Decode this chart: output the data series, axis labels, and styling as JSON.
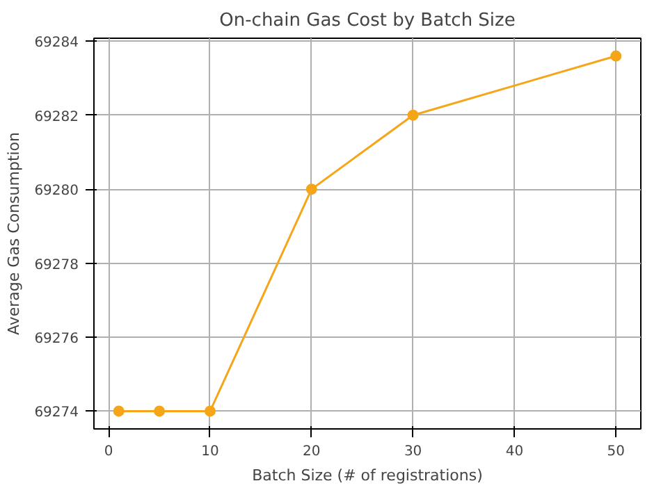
{
  "chart_data": {
    "type": "line",
    "title": "On-chain Gas Cost by Batch Size",
    "xlabel": "Batch Size (# of registrations)",
    "ylabel": "Average Gas Consumption",
    "x": [
      1,
      5,
      10,
      20,
      30,
      50
    ],
    "series": [
      {
        "color": "#f5a518",
        "values": [
          69274,
          69274,
          69274,
          69280,
          69282,
          69283.6
        ]
      }
    ],
    "xlim": [
      -1.45,
      52.45
    ],
    "ylim": [
      69273.52,
      69284.08
    ],
    "xticks": [
      0,
      10,
      20,
      30,
      40,
      50
    ],
    "yticks": [
      69274,
      69276,
      69278,
      69280,
      69282,
      69284
    ],
    "grid": true,
    "marker": "circle",
    "line_style": "solid"
  }
}
